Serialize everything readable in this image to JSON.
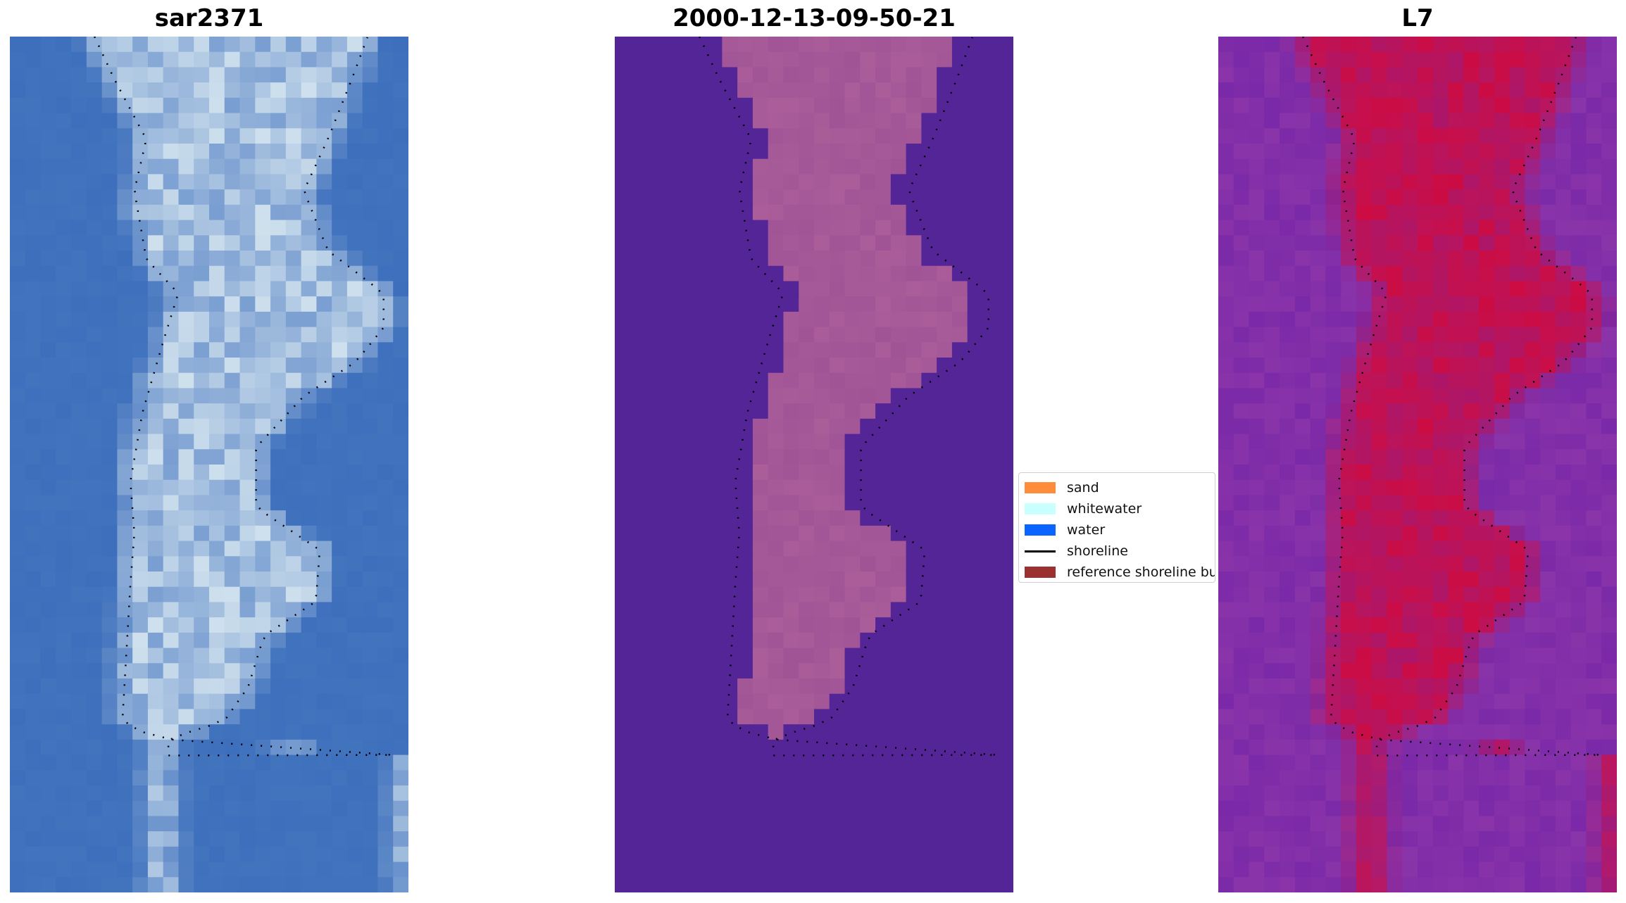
{
  "panels": [
    {
      "title": "sar2371",
      "palette": "rgb"
    },
    {
      "title": "2000-12-13-09-50-21",
      "palette": "classified"
    },
    {
      "title": "L7",
      "palette": "index"
    }
  ],
  "legend": {
    "items": [
      {
        "label": "sand",
        "type": "patch",
        "color": "#ff8c3a"
      },
      {
        "label": "whitewater",
        "type": "patch",
        "color": "#c8ffff"
      },
      {
        "label": "water",
        "type": "patch",
        "color": "#0a64ff"
      },
      {
        "label": "shoreline",
        "type": "line",
        "color": "#000000"
      },
      {
        "label": "reference shoreline buffer",
        "type": "patch",
        "color": "#9b3030"
      }
    ]
  },
  "colors": {
    "rgb_water": "#3d6fbd",
    "rgb_bright": "#e8f4f6",
    "class_water": "#532596",
    "class_land": "#a05496",
    "index_low": "#7a29a8",
    "index_high": "#cf0a3e"
  }
}
